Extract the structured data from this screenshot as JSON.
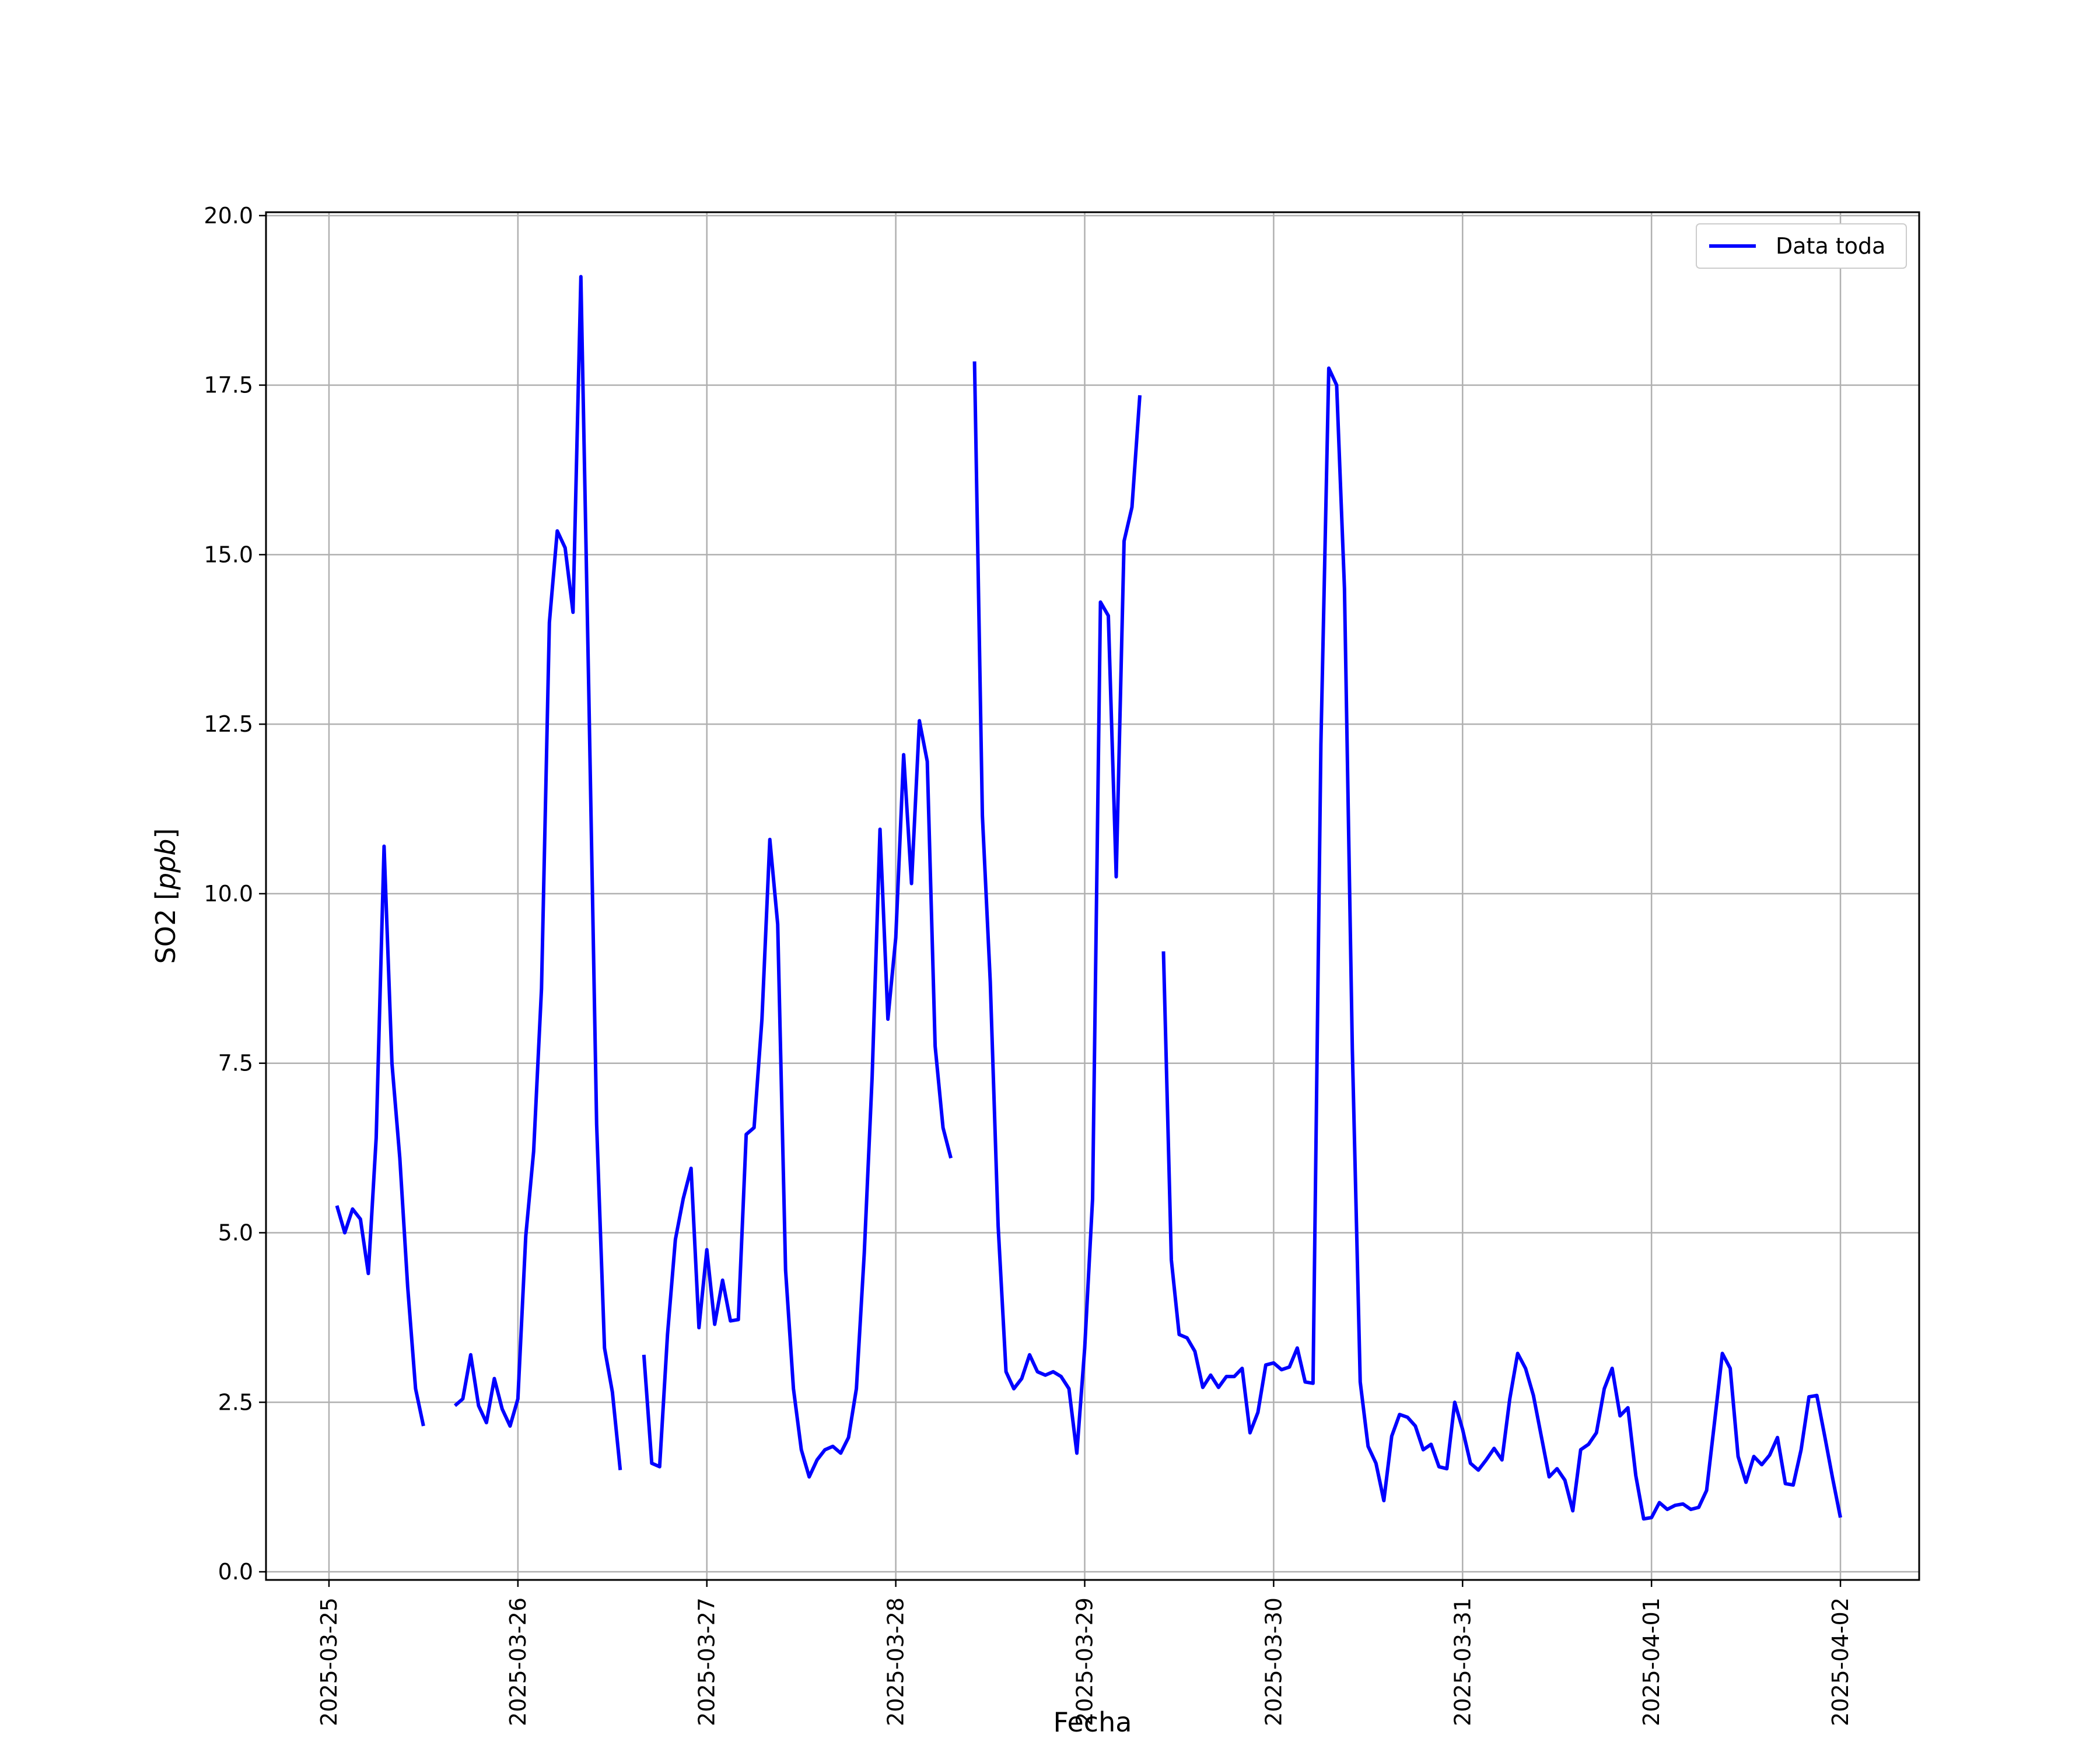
{
  "chart_data": {
    "type": "line",
    "title": "",
    "xlabel": "Fecha",
    "ylabel": "SO2 [ppb]",
    "ylabel_plain": "SO2 [",
    "ylabel_unit": "ppb",
    "ylabel_close": "]",
    "ylim": [
      -0.12,
      20.05
    ],
    "xlim": [
      "2025-03-24T16:00",
      "2025-04-02T10:00"
    ],
    "grid": true,
    "legend_position": "upper right",
    "x_tick_labels": [
      "2025-03-25",
      "2025-03-26",
      "2025-03-27",
      "2025-03-28",
      "2025-03-29",
      "2025-03-30",
      "2025-03-31",
      "2025-04-01",
      "2025-04-02"
    ],
    "y_tick_labels": [
      "0.0",
      "2.5",
      "5.0",
      "7.5",
      "10.0",
      "12.5",
      "15.0",
      "17.5",
      "20.0"
    ],
    "series": [
      {
        "name": "Data toda",
        "color": "#0000ff",
        "segments": [
          [
            [
              "2025-03-25T01:00",
              5.4
            ],
            [
              "2025-03-25T02:00",
              5.0
            ],
            [
              "2025-03-25T03:00",
              5.35
            ],
            [
              "2025-03-25T04:00",
              5.2
            ],
            [
              "2025-03-25T05:00",
              4.4
            ],
            [
              "2025-03-25T06:00",
              6.4
            ],
            [
              "2025-03-25T07:00",
              10.7
            ],
            [
              "2025-03-25T08:00",
              7.5
            ],
            [
              "2025-03-25T09:00",
              6.1
            ],
            [
              "2025-03-25T10:00",
              4.2
            ],
            [
              "2025-03-25T11:00",
              2.7
            ],
            [
              "2025-03-25T12:00",
              2.15
            ]
          ],
          [
            [
              "2025-03-25T16:00",
              2.45
            ],
            [
              "2025-03-25T17:00",
              2.55
            ],
            [
              "2025-03-25T18:00",
              3.2
            ],
            [
              "2025-03-25T19:00",
              2.45
            ],
            [
              "2025-03-25T20:00",
              2.2
            ],
            [
              "2025-03-25T21:00",
              2.85
            ],
            [
              "2025-03-25T22:00",
              2.4
            ],
            [
              "2025-03-25T23:00",
              2.15
            ],
            [
              "2025-03-26T00:00",
              2.55
            ],
            [
              "2025-03-26T01:00",
              4.95
            ],
            [
              "2025-03-26T02:00",
              6.2
            ],
            [
              "2025-03-26T03:00",
              8.6
            ],
            [
              "2025-03-26T04:00",
              14.0
            ],
            [
              "2025-03-26T05:00",
              15.35
            ],
            [
              "2025-03-26T06:00",
              15.1
            ],
            [
              "2025-03-26T07:00",
              14.15
            ],
            [
              "2025-03-26T08:00",
              19.1
            ],
            [
              "2025-03-26T09:00",
              13.0
            ],
            [
              "2025-03-26T10:00",
              6.6
            ],
            [
              "2025-03-26T11:00",
              3.3
            ],
            [
              "2025-03-26T12:00",
              2.65
            ],
            [
              "2025-03-26T13:00",
              1.5
            ]
          ],
          [
            [
              "2025-03-26T16:00",
              3.2
            ],
            [
              "2025-03-26T17:00",
              1.6
            ],
            [
              "2025-03-26T18:00",
              1.55
            ],
            [
              "2025-03-26T19:00",
              3.5
            ],
            [
              "2025-03-26T20:00",
              4.9
            ],
            [
              "2025-03-26T21:00",
              5.5
            ],
            [
              "2025-03-26T22:00",
              5.95
            ],
            [
              "2025-03-26T23:00",
              3.6
            ],
            [
              "2025-03-27T00:00",
              4.75
            ],
            [
              "2025-03-27T01:00",
              3.65
            ],
            [
              "2025-03-27T02:00",
              4.3
            ],
            [
              "2025-03-27T03:00",
              3.7
            ],
            [
              "2025-03-27T04:00",
              3.72
            ],
            [
              "2025-03-27T05:00",
              6.45
            ],
            [
              "2025-03-27T06:00",
              6.55
            ],
            [
              "2025-03-27T07:00",
              8.15
            ],
            [
              "2025-03-27T08:00",
              10.8
            ],
            [
              "2025-03-27T09:00",
              9.55
            ],
            [
              "2025-03-27T10:00",
              4.45
            ],
            [
              "2025-03-27T11:00",
              2.7
            ],
            [
              "2025-03-27T12:00",
              1.8
            ],
            [
              "2025-03-27T13:00",
              1.4
            ],
            [
              "2025-03-27T14:00",
              1.65
            ],
            [
              "2025-03-27T15:00",
              1.8
            ],
            [
              "2025-03-27T16:00",
              1.85
            ],
            [
              "2025-03-27T17:00",
              1.75
            ],
            [
              "2025-03-27T18:00",
              1.98
            ],
            [
              "2025-03-27T19:00",
              2.7
            ],
            [
              "2025-03-27T20:00",
              4.7
            ],
            [
              "2025-03-27T21:00",
              7.3
            ],
            [
              "2025-03-27T22:00",
              10.95
            ],
            [
              "2025-03-27T23:00",
              8.15
            ],
            [
              "2025-03-28T00:00",
              9.35
            ],
            [
              "2025-03-28T01:00",
              12.05
            ],
            [
              "2025-03-28T02:00",
              10.15
            ],
            [
              "2025-03-28T03:00",
              12.55
            ],
            [
              "2025-03-28T04:00",
              11.95
            ],
            [
              "2025-03-28T05:00",
              7.75
            ],
            [
              "2025-03-28T06:00",
              6.55
            ],
            [
              "2025-03-28T07:00",
              6.1
            ]
          ],
          [
            [
              "2025-03-28T10:00",
              17.85
            ],
            [
              "2025-03-28T11:00",
              11.15
            ],
            [
              "2025-03-28T12:00",
              8.7
            ],
            [
              "2025-03-28T13:00",
              5.1
            ],
            [
              "2025-03-28T14:00",
              2.95
            ],
            [
              "2025-03-28T15:00",
              2.7
            ],
            [
              "2025-03-28T16:00",
              2.85
            ],
            [
              "2025-03-28T17:00",
              3.2
            ],
            [
              "2025-03-28T18:00",
              2.95
            ],
            [
              "2025-03-28T19:00",
              2.9
            ],
            [
              "2025-03-28T20:00",
              2.95
            ],
            [
              "2025-03-28T21:00",
              2.88
            ],
            [
              "2025-03-28T22:00",
              2.7
            ],
            [
              "2025-03-28T23:00",
              1.75
            ],
            [
              "2025-03-29T00:00",
              3.3
            ],
            [
              "2025-03-29T01:00",
              5.5
            ],
            [
              "2025-03-29T02:00",
              14.3
            ],
            [
              "2025-03-29T03:00",
              14.1
            ],
            [
              "2025-03-29T04:00",
              10.25
            ],
            [
              "2025-03-29T05:00",
              15.2
            ],
            [
              "2025-03-29T06:00",
              15.7
            ],
            [
              "2025-03-29T07:00",
              17.35
            ]
          ],
          [
            [
              "2025-03-29T10:00",
              9.15
            ],
            [
              "2025-03-29T11:00",
              4.6
            ],
            [
              "2025-03-29T12:00",
              3.5
            ],
            [
              "2025-03-29T13:00",
              3.45
            ],
            [
              "2025-03-29T14:00",
              3.25
            ],
            [
              "2025-03-29T15:00",
              2.72
            ],
            [
              "2025-03-29T16:00",
              2.9
            ],
            [
              "2025-03-29T17:00",
              2.72
            ],
            [
              "2025-03-29T18:00",
              2.88
            ],
            [
              "2025-03-29T19:00",
              2.88
            ],
            [
              "2025-03-29T20:00",
              3.0
            ],
            [
              "2025-03-29T21:00",
              2.05
            ],
            [
              "2025-03-29T22:00",
              2.35
            ],
            [
              "2025-03-29T23:00",
              3.05
            ],
            [
              "2025-03-30T00:00",
              3.08
            ],
            [
              "2025-03-30T01:00",
              2.98
            ],
            [
              "2025-03-30T02:00",
              3.02
            ],
            [
              "2025-03-30T03:00",
              3.3
            ],
            [
              "2025-03-30T04:00",
              2.8
            ],
            [
              "2025-03-30T05:00",
              2.78
            ],
            [
              "2025-03-30T06:00",
              12.2
            ],
            [
              "2025-03-30T07:00",
              17.75
            ],
            [
              "2025-03-30T08:00",
              17.5
            ],
            [
              "2025-03-30T09:00",
              14.5
            ],
            [
              "2025-03-30T10:00",
              7.7
            ],
            [
              "2025-03-30T11:00",
              2.8
            ],
            [
              "2025-03-30T12:00",
              1.85
            ],
            [
              "2025-03-30T13:00",
              1.6
            ],
            [
              "2025-03-30T14:00",
              1.05
            ],
            [
              "2025-03-30T15:00",
              2.0
            ],
            [
              "2025-03-30T16:00",
              2.32
            ],
            [
              "2025-03-30T17:00",
              2.28
            ],
            [
              "2025-03-30T18:00",
              2.15
            ],
            [
              "2025-03-30T19:00",
              1.8
            ],
            [
              "2025-03-30T20:00",
              1.88
            ],
            [
              "2025-03-30T21:00",
              1.55
            ],
            [
              "2025-03-30T22:00",
              1.52
            ],
            [
              "2025-03-30T23:00",
              2.5
            ],
            [
              "2025-03-31T00:00",
              2.1
            ],
            [
              "2025-03-31T01:00",
              1.6
            ],
            [
              "2025-03-31T02:00",
              1.5
            ],
            [
              "2025-03-31T03:00",
              1.65
            ],
            [
              "2025-03-31T04:00",
              1.82
            ],
            [
              "2025-03-31T05:00",
              1.65
            ],
            [
              "2025-03-31T06:00",
              2.55
            ],
            [
              "2025-03-31T07:00",
              3.22
            ],
            [
              "2025-03-31T08:00",
              3.0
            ],
            [
              "2025-03-31T09:00",
              2.6
            ],
            [
              "2025-03-31T10:00",
              2.0
            ],
            [
              "2025-03-31T11:00",
              1.4
            ],
            [
              "2025-03-31T12:00",
              1.52
            ],
            [
              "2025-03-31T13:00",
              1.35
            ],
            [
              "2025-03-31T14:00",
              0.9
            ],
            [
              "2025-03-31T15:00",
              1.8
            ],
            [
              "2025-03-31T16:00",
              1.88
            ],
            [
              "2025-03-31T17:00",
              2.05
            ],
            [
              "2025-03-31T18:00",
              2.7
            ],
            [
              "2025-03-31T19:00",
              3.0
            ],
            [
              "2025-03-31T20:00",
              2.3
            ],
            [
              "2025-03-31T21:00",
              2.42
            ],
            [
              "2025-03-31T22:00",
              1.42
            ],
            [
              "2025-03-31T23:00",
              0.78
            ],
            [
              "2025-04-01T00:00",
              0.8
            ],
            [
              "2025-04-01T01:00",
              1.02
            ],
            [
              "2025-04-01T02:00",
              0.92
            ],
            [
              "2025-04-01T03:00",
              0.98
            ],
            [
              "2025-04-01T04:00",
              1.0
            ],
            [
              "2025-04-01T05:00",
              0.92
            ],
            [
              "2025-04-01T06:00",
              0.95
            ],
            [
              "2025-04-01T07:00",
              1.2
            ],
            [
              "2025-04-01T08:00",
              2.2
            ],
            [
              "2025-04-01T09:00",
              3.22
            ],
            [
              "2025-04-01T10:00",
              3.0
            ],
            [
              "2025-04-01T11:00",
              1.7
            ],
            [
              "2025-04-01T12:00",
              1.32
            ],
            [
              "2025-04-01T13:00",
              1.7
            ],
            [
              "2025-04-01T14:00",
              1.58
            ],
            [
              "2025-04-01T15:00",
              1.72
            ],
            [
              "2025-04-01T16:00",
              1.98
            ],
            [
              "2025-04-01T17:00",
              1.3
            ],
            [
              "2025-04-01T18:00",
              1.28
            ],
            [
              "2025-04-01T19:00",
              1.8
            ],
            [
              "2025-04-01T20:00",
              2.58
            ],
            [
              "2025-04-01T21:00",
              2.6
            ],
            [
              "2025-04-01T22:00",
              2.0
            ],
            [
              "2025-04-01T23:00",
              1.38
            ],
            [
              "2025-04-02T00:00",
              0.8
            ]
          ]
        ]
      }
    ]
  }
}
